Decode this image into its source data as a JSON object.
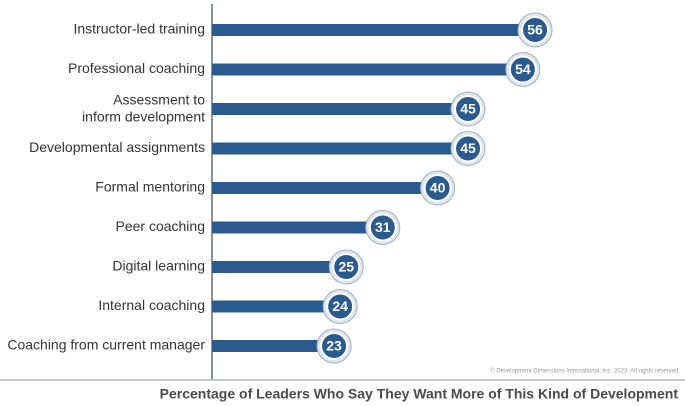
{
  "chart_data": {
    "type": "bar",
    "orientation": "horizontal",
    "title": "Percentage of Leaders Who Say They Want More of This Kind of Development",
    "note": "© Development Dimensions International, Inc. 2023. All rights reserved.",
    "categories": [
      "Instructor-led training",
      "Professional coaching",
      "Assessment to\ninform development",
      "Developmental assignments",
      "Formal mentoring",
      "Peer coaching",
      "Digital learning",
      "Internal coaching",
      "Coaching from current manager"
    ],
    "values": [
      56,
      54,
      45,
      45,
      40,
      31,
      25,
      24,
      23
    ],
    "color": "#2b5b8e"
  }
}
